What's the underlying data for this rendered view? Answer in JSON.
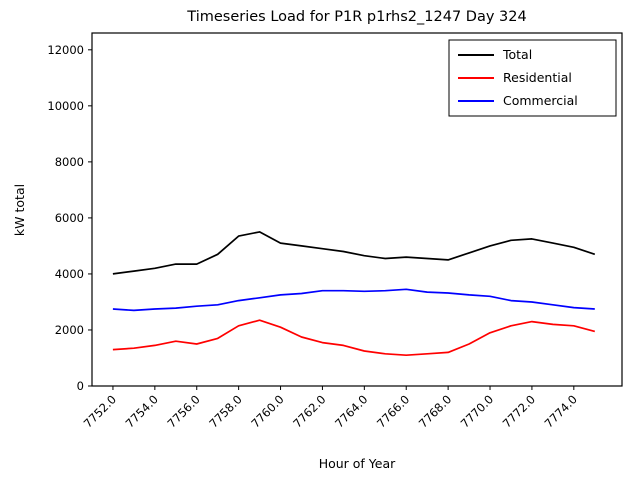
{
  "window": {
    "title": "Timeseries Load for P1R p1rhs2_1247  Day 324"
  },
  "chart_data": {
    "type": "line",
    "title": "Timeseries Load for P1R p1rhs2_1247  Day 324",
    "xlabel": "Hour of Year",
    "ylabel": "kW total",
    "xlim": [
      7751,
      7776.3
    ],
    "ylim": [
      0,
      12600
    ],
    "grid": false,
    "legend_position": "upper right",
    "xticks": [
      7752,
      7754,
      7756,
      7758,
      7760,
      7762,
      7764,
      7766,
      7768,
      7770,
      7772,
      7774
    ],
    "xtick_labels": [
      "7752.0",
      "7754.0",
      "7756.0",
      "7758.0",
      "7760.0",
      "7762.0",
      "7764.0",
      "7766.0",
      "7768.0",
      "7770.0",
      "7772.0",
      "7774.0"
    ],
    "yticks": [
      0,
      2000,
      4000,
      6000,
      8000,
      10000,
      12000
    ],
    "ytick_labels": [
      "0",
      "2000",
      "4000",
      "6000",
      "8000",
      "10000",
      "12000"
    ],
    "x": [
      7752,
      7753,
      7754,
      7755,
      7756,
      7757,
      7758,
      7759,
      7760,
      7761,
      7762,
      7763,
      7764,
      7765,
      7766,
      7767,
      7768,
      7769,
      7770,
      7771,
      7772,
      7773,
      7774,
      7775
    ],
    "series": [
      {
        "name": "Total",
        "color": "#000000",
        "values": [
          4000,
          4100,
          4200,
          4350,
          4350,
          4700,
          5350,
          5500,
          5100,
          5000,
          4900,
          4800,
          4650,
          4550,
          4600,
          4550,
          4500,
          4750,
          5000,
          5200,
          5250,
          5100,
          4950,
          4700
        ]
      },
      {
        "name": "Residential",
        "color": "#ff0000",
        "values": [
          1300,
          1350,
          1450,
          1600,
          1500,
          1700,
          2150,
          2350,
          2100,
          1750,
          1550,
          1450,
          1250,
          1150,
          1100,
          1150,
          1200,
          1500,
          1900,
          2150,
          2300,
          2200,
          2150,
          1950
        ]
      },
      {
        "name": "Commercial",
        "color": "#0000ff",
        "values": [
          2750,
          2700,
          2750,
          2780,
          2850,
          2900,
          3050,
          3150,
          3250,
          3300,
          3400,
          3400,
          3380,
          3400,
          3450,
          3350,
          3320,
          3250,
          3200,
          3050,
          3000,
          2900,
          2800,
          2750
        ]
      }
    ]
  }
}
